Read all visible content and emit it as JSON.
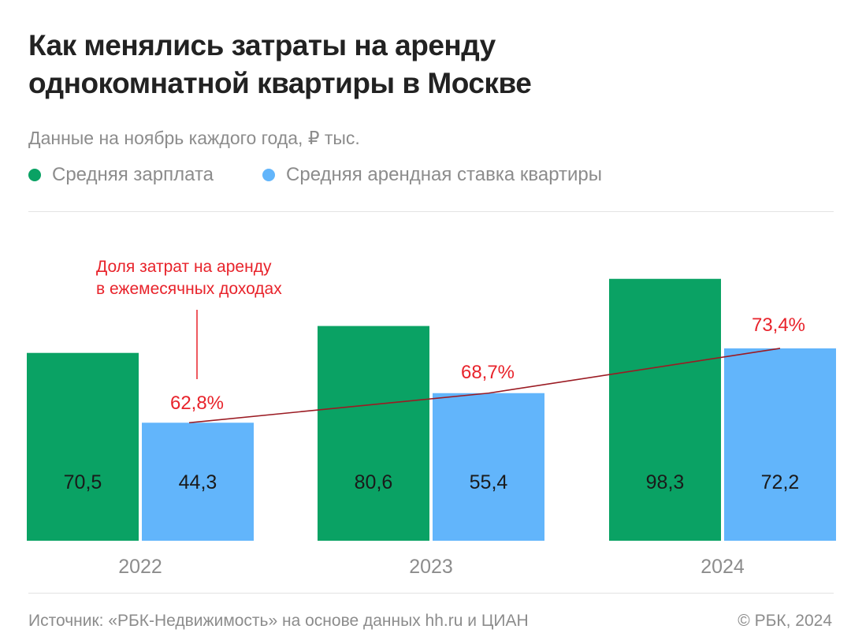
{
  "header": {
    "title_line1": "Как менялись затраты на аренду",
    "title_line2": "однокомнатной квартиры в Москве",
    "subtitle": "Данные на ноябрь каждого года, ₽ тыс."
  },
  "legend": [
    {
      "label": "Средняя зарплата",
      "color": "#0aa264"
    },
    {
      "label": "Средняя арендная ставка квартиры",
      "color": "#62b5fb"
    }
  ],
  "annotation": {
    "line1": "Доля затрат на аренду",
    "line2": "в ежемесячных доходах",
    "color": "#e8232b"
  },
  "chart_data": {
    "type": "bar",
    "categories": [
      "2022",
      "2023",
      "2024"
    ],
    "series": [
      {
        "name": "Средняя зарплата",
        "values": [
          70.5,
          80.6,
          98.3
        ],
        "labels": [
          "70,5",
          "80,6",
          "98,3"
        ],
        "color": "#0aa264"
      },
      {
        "name": "Средняя арендная ставка квартиры",
        "values": [
          44.3,
          55.4,
          72.2
        ],
        "labels": [
          "44,3",
          "55,4",
          "72,2"
        ],
        "color": "#62b5fb"
      }
    ],
    "share_line": {
      "name": "Доля затрат на аренду в ежемесячных доходах",
      "values": [
        62.8,
        68.7,
        73.4
      ],
      "labels": [
        "62,8%",
        "68,7%",
        "73,4%"
      ],
      "color": "#9b1b23"
    },
    "ylim": [
      0,
      100
    ],
    "grid": false
  },
  "footer": {
    "source": "Источник: «РБК-Недвижимость» на основе данных hh.ru и ЦИАН",
    "copyright": "© РБК, 2024"
  }
}
